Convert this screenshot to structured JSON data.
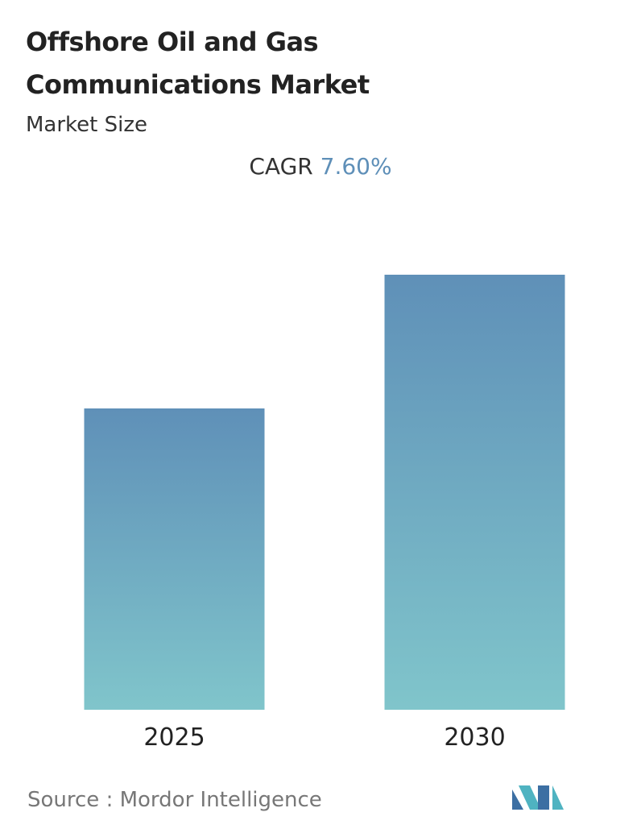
{
  "chart_data": {
    "type": "bar",
    "title": "Offshore Oil and Gas Communications Market",
    "subtitle": "Market Size",
    "cagr_label": "CAGR",
    "cagr_value": "7.60%",
    "categories": [
      "2025",
      "2030"
    ],
    "values": [
      374,
      540
    ],
    "ylim": [
      0,
      540
    ],
    "gradient": [
      "#5f90b8",
      "#80c5cb"
    ],
    "source": "Source :  Mordor Intelligence"
  }
}
